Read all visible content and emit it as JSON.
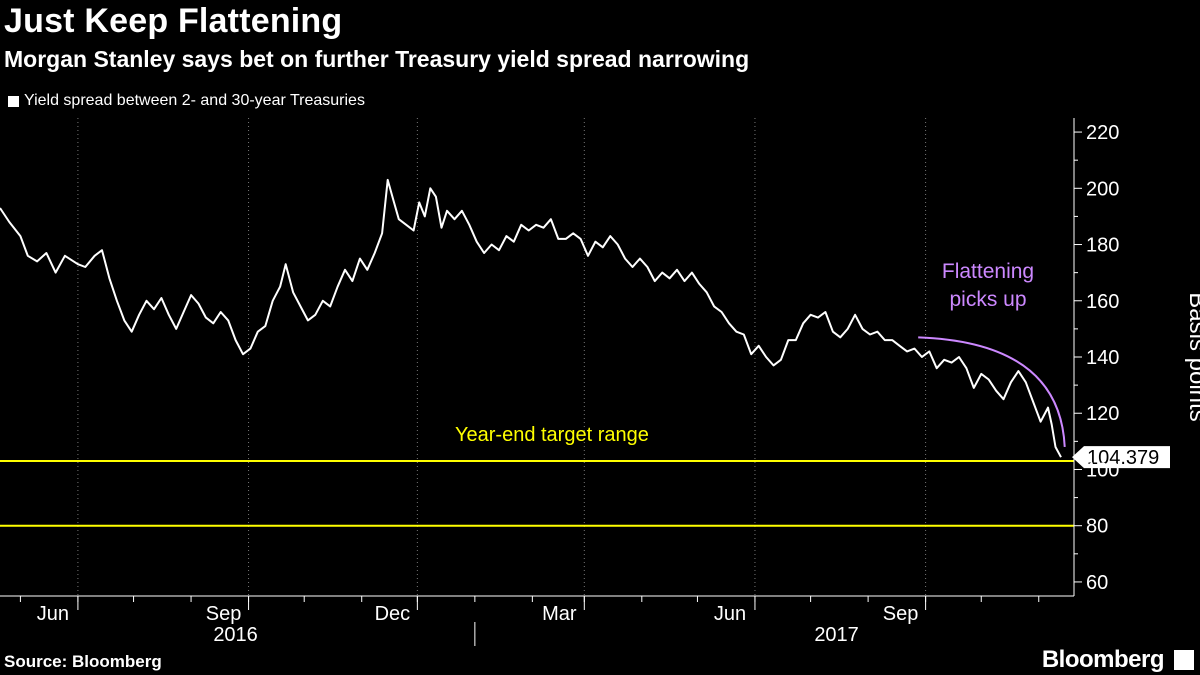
{
  "title": "Just Keep Flattening",
  "subtitle": "Morgan Stanley says bet on further Treasury yield spread narrowing",
  "legend_label": "Yield spread between 2- and 30-year Treasuries",
  "source": "Source: Bloomberg",
  "brand": "Bloomberg",
  "colors": {
    "background": "#000000",
    "series": "#ffffff",
    "target_lines": "#ffff00",
    "annotation": "#cc88ff"
  },
  "chart_data": {
    "type": "line",
    "ylabel": "Basis points",
    "ylim": [
      55,
      225
    ],
    "yticks": [
      60,
      80,
      100,
      120,
      140,
      160,
      180,
      200,
      220
    ],
    "x_range": [
      "2016-04-20",
      "2017-11-20"
    ],
    "xticks": [
      {
        "date": "2016-06-01",
        "label": "Jun"
      },
      {
        "date": "2016-09-01",
        "label": "Sep"
      },
      {
        "date": "2016-12-01",
        "label": "Dec"
      },
      {
        "date": "2017-03-01",
        "label": "Mar"
      },
      {
        "date": "2017-06-01",
        "label": "Jun"
      },
      {
        "date": "2017-09-01",
        "label": "Sep"
      }
    ],
    "year_labels": [
      {
        "label": "2016",
        "center": "2016-08-25"
      },
      {
        "label": "2017",
        "center": "2017-07-15"
      }
    ],
    "year_separator": "2017-01-01",
    "grid": "dotted vertical",
    "series": [
      {
        "name": "Yield spread between 2- and 30-year Treasuries",
        "points": [
          [
            "2016-04-20",
            193
          ],
          [
            "2016-04-25",
            188
          ],
          [
            "2016-05-01",
            183
          ],
          [
            "2016-05-05",
            176
          ],
          [
            "2016-05-10",
            174
          ],
          [
            "2016-05-15",
            177
          ],
          [
            "2016-05-20",
            170
          ],
          [
            "2016-05-25",
            176
          ],
          [
            "2016-06-01",
            173
          ],
          [
            "2016-06-05",
            172
          ],
          [
            "2016-06-10",
            176
          ],
          [
            "2016-06-14",
            178
          ],
          [
            "2016-06-18",
            168
          ],
          [
            "2016-06-22",
            160
          ],
          [
            "2016-06-26",
            153
          ],
          [
            "2016-06-30",
            149
          ],
          [
            "2016-07-04",
            155
          ],
          [
            "2016-07-08",
            160
          ],
          [
            "2016-07-12",
            157
          ],
          [
            "2016-07-16",
            161
          ],
          [
            "2016-07-20",
            155
          ],
          [
            "2016-07-24",
            150
          ],
          [
            "2016-07-28",
            156
          ],
          [
            "2016-08-01",
            162
          ],
          [
            "2016-08-05",
            159
          ],
          [
            "2016-08-09",
            154
          ],
          [
            "2016-08-13",
            152
          ],
          [
            "2016-08-17",
            156
          ],
          [
            "2016-08-21",
            153
          ],
          [
            "2016-08-25",
            146
          ],
          [
            "2016-08-29",
            141
          ],
          [
            "2016-09-02",
            143
          ],
          [
            "2016-09-06",
            149
          ],
          [
            "2016-09-10",
            151
          ],
          [
            "2016-09-14",
            160
          ],
          [
            "2016-09-18",
            165
          ],
          [
            "2016-09-21",
            173
          ],
          [
            "2016-09-25",
            163
          ],
          [
            "2016-09-29",
            158
          ],
          [
            "2016-10-03",
            153
          ],
          [
            "2016-10-07",
            155
          ],
          [
            "2016-10-11",
            160
          ],
          [
            "2016-10-15",
            158
          ],
          [
            "2016-10-19",
            165
          ],
          [
            "2016-10-23",
            171
          ],
          [
            "2016-10-27",
            167
          ],
          [
            "2016-10-31",
            175
          ],
          [
            "2016-11-04",
            171
          ],
          [
            "2016-11-08",
            177
          ],
          [
            "2016-11-12",
            184
          ],
          [
            "2016-11-15",
            203
          ],
          [
            "2016-11-18",
            196
          ],
          [
            "2016-11-21",
            189
          ],
          [
            "2016-11-25",
            187
          ],
          [
            "2016-11-29",
            185
          ],
          [
            "2016-12-02",
            195
          ],
          [
            "2016-12-05",
            190
          ],
          [
            "2016-12-08",
            200
          ],
          [
            "2016-12-11",
            197
          ],
          [
            "2016-12-14",
            186
          ],
          [
            "2016-12-17",
            192
          ],
          [
            "2016-12-21",
            189
          ],
          [
            "2016-12-25",
            192
          ],
          [
            "2016-12-29",
            187
          ],
          [
            "2017-01-02",
            181
          ],
          [
            "2017-01-06",
            177
          ],
          [
            "2017-01-10",
            180
          ],
          [
            "2017-01-14",
            178
          ],
          [
            "2017-01-18",
            183
          ],
          [
            "2017-01-22",
            181
          ],
          [
            "2017-01-26",
            187
          ],
          [
            "2017-01-30",
            185
          ],
          [
            "2017-02-03",
            187
          ],
          [
            "2017-02-07",
            186
          ],
          [
            "2017-02-11",
            189
          ],
          [
            "2017-02-15",
            182
          ],
          [
            "2017-02-19",
            182
          ],
          [
            "2017-02-23",
            184
          ],
          [
            "2017-02-27",
            182
          ],
          [
            "2017-03-03",
            176
          ],
          [
            "2017-03-07",
            181
          ],
          [
            "2017-03-11",
            179
          ],
          [
            "2017-03-15",
            183
          ],
          [
            "2017-03-19",
            180
          ],
          [
            "2017-03-23",
            175
          ],
          [
            "2017-03-27",
            172
          ],
          [
            "2017-03-31",
            175
          ],
          [
            "2017-04-04",
            172
          ],
          [
            "2017-04-08",
            167
          ],
          [
            "2017-04-12",
            170
          ],
          [
            "2017-04-16",
            168
          ],
          [
            "2017-04-20",
            171
          ],
          [
            "2017-04-24",
            167
          ],
          [
            "2017-04-28",
            170
          ],
          [
            "2017-05-02",
            166
          ],
          [
            "2017-05-06",
            163
          ],
          [
            "2017-05-10",
            158
          ],
          [
            "2017-05-14",
            156
          ],
          [
            "2017-05-18",
            152
          ],
          [
            "2017-05-22",
            149
          ],
          [
            "2017-05-26",
            148
          ],
          [
            "2017-05-30",
            141
          ],
          [
            "2017-06-03",
            144
          ],
          [
            "2017-06-07",
            140
          ],
          [
            "2017-06-11",
            137
          ],
          [
            "2017-06-15",
            139
          ],
          [
            "2017-06-19",
            146
          ],
          [
            "2017-06-23",
            146
          ],
          [
            "2017-06-27",
            152
          ],
          [
            "2017-07-01",
            155
          ],
          [
            "2017-07-05",
            154
          ],
          [
            "2017-07-09",
            156
          ],
          [
            "2017-07-13",
            149
          ],
          [
            "2017-07-17",
            147
          ],
          [
            "2017-07-21",
            150
          ],
          [
            "2017-07-25",
            155
          ],
          [
            "2017-07-29",
            150
          ],
          [
            "2017-08-02",
            148
          ],
          [
            "2017-08-06",
            149
          ],
          [
            "2017-08-10",
            146
          ],
          [
            "2017-08-14",
            146
          ],
          [
            "2017-08-18",
            144
          ],
          [
            "2017-08-22",
            142
          ],
          [
            "2017-08-26",
            143
          ],
          [
            "2017-08-30",
            140
          ],
          [
            "2017-09-03",
            142
          ],
          [
            "2017-09-07",
            136
          ],
          [
            "2017-09-11",
            139
          ],
          [
            "2017-09-15",
            138
          ],
          [
            "2017-09-19",
            140
          ],
          [
            "2017-09-23",
            136
          ],
          [
            "2017-09-27",
            129
          ],
          [
            "2017-10-01",
            134
          ],
          [
            "2017-10-05",
            132
          ],
          [
            "2017-10-09",
            128
          ],
          [
            "2017-10-13",
            125
          ],
          [
            "2017-10-17",
            131
          ],
          [
            "2017-10-21",
            135
          ],
          [
            "2017-10-25",
            131
          ],
          [
            "2017-10-29",
            124
          ],
          [
            "2017-11-02",
            117
          ],
          [
            "2017-11-06",
            122
          ],
          [
            "2017-11-08",
            116
          ],
          [
            "2017-11-10",
            108
          ],
          [
            "2017-11-13",
            104.379
          ]
        ]
      }
    ],
    "target_range": {
      "label": "Year-end target range",
      "low": 80,
      "high": 103
    },
    "last_value_label": "104.379",
    "annotation": {
      "text_lines": [
        "Flattening",
        "picks up"
      ],
      "curve_from": [
        "2017-08-28",
        147
      ],
      "curve_to": [
        "2017-11-15",
        108
      ]
    }
  }
}
